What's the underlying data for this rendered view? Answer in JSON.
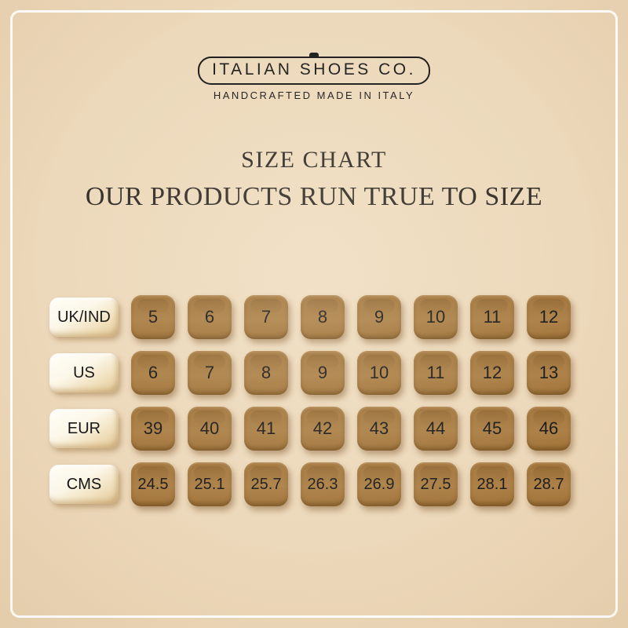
{
  "brand": {
    "name": "ITALIAN SHOES CO.",
    "tagline": "HANDCRAFTED MADE IN ITALY"
  },
  "heading": {
    "title": "SIZE CHART",
    "subtitle": "OUR PRODUCTS RUN TRUE TO SIZE"
  },
  "chart_data": {
    "type": "table",
    "title": "SIZE CHART",
    "subtitle": "OUR PRODUCTS RUN TRUE TO SIZE",
    "row_headers": [
      "UK/IND",
      "US",
      "EUR",
      "CMS"
    ],
    "rows": [
      [
        5,
        6,
        7,
        8,
        9,
        10,
        11,
        12
      ],
      [
        6,
        7,
        8,
        9,
        10,
        11,
        12,
        13
      ],
      [
        39,
        40,
        41,
        42,
        43,
        44,
        45,
        46
      ],
      [
        24.5,
        25.1,
        25.7,
        26.3,
        26.9,
        27.5,
        28.1,
        28.7
      ]
    ]
  },
  "colors": {
    "background": "#ecd8ba",
    "frame": "#ffffff",
    "tile_brown": "#a87c43",
    "tile_cream": "#fbf5e5",
    "text_dark": "#1c1c1c"
  }
}
